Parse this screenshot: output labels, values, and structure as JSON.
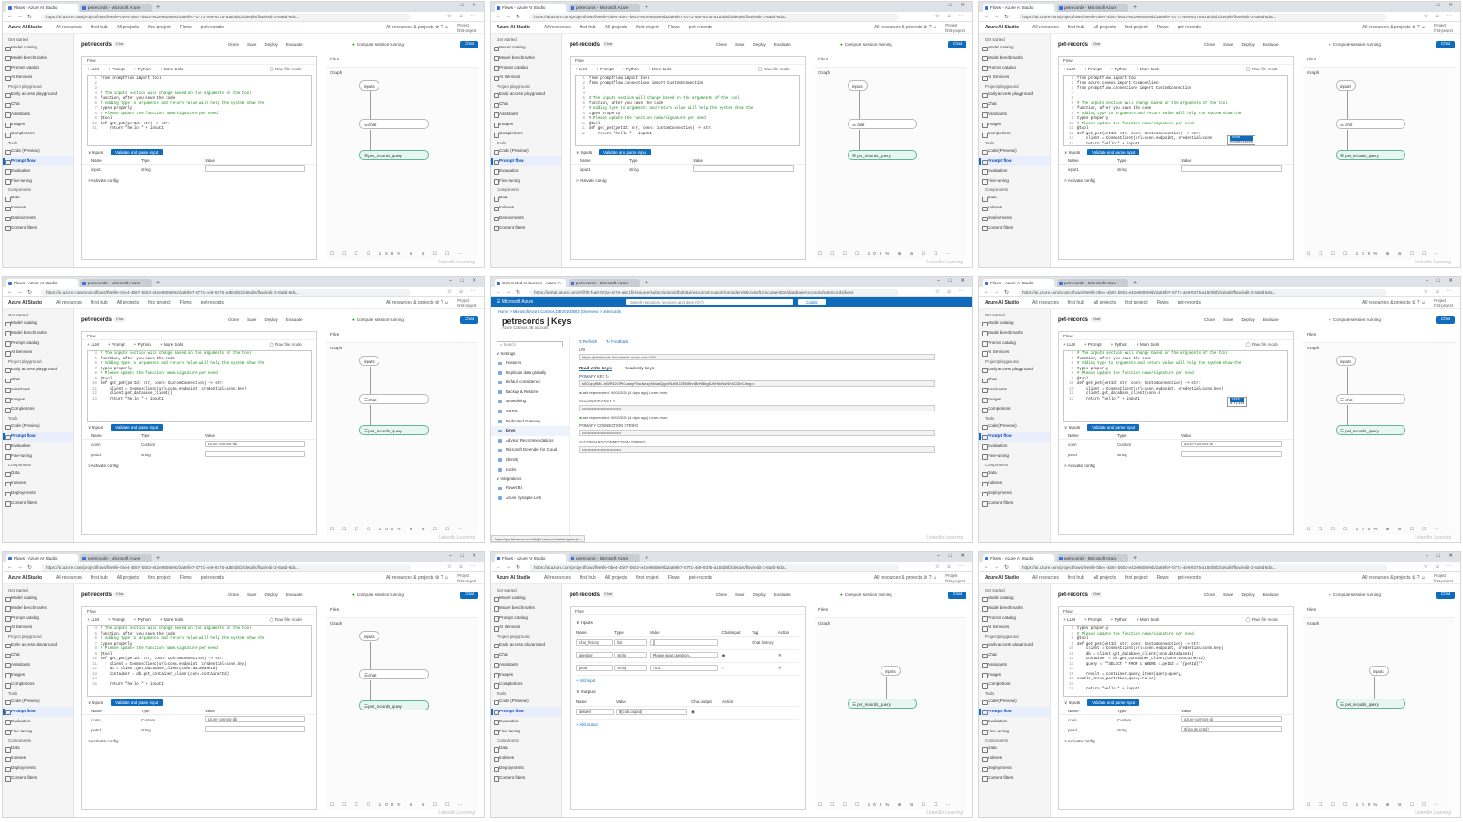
{
  "browser": {
    "tabs": [
      "Flows - Azure AI Studio",
      "petrecords - Microsoft Azure"
    ],
    "url": "https://ai.azure.com/projectflows/f9e9fe-0be4-4b97-b602-e42e9808e9b/2a69fe7-0771-4e9-9375-a150d8f2/details/flow/edit-3-8a8d-8da...",
    "azure_tabs": [
      "Connected resources - Azure AI",
      "petrecords - Microsoft Azure"
    ],
    "azure_url": "https://portal.azure.com/#@f0-f4a0-b72a-4b7e-a0c1f/resource/subscriptions/bb2b5a/resourceGroups/r/providers/Microsoft.DocumentDB/databaseAccounts/petrecords/keys"
  },
  "app": {
    "brand": "Azure AI Studio",
    "breadcrumbs": [
      "All resources",
      "first hub",
      "All projects",
      "first project",
      "Flows",
      "pet-records"
    ],
    "resources_label": "All resources & projects",
    "project_label": "Project",
    "project_name": "first-project"
  },
  "sidebar": [
    {
      "group": "Get started",
      "items": [
        "Model catalog",
        "Model benchmarks",
        "Prompt catalog",
        "AI Services"
      ]
    },
    {
      "group": "Project playground",
      "items": [
        "Early access playground",
        "Chat",
        "Assistants",
        "Images",
        "Completions"
      ]
    },
    {
      "group": "Tools",
      "items": [
        "Code (Preview)",
        "Prompt flow",
        "Evaluation",
        "Fine-tuning"
      ]
    },
    {
      "group": "Components",
      "items": [
        "Data",
        "Indexes",
        "Deployments",
        "Content filters"
      ]
    }
  ],
  "flow": {
    "title": "pet-records",
    "badge": "Chat",
    "actions": [
      "Clone",
      "Save",
      "Deploy",
      "Evaluate"
    ],
    "compute": "Compute session running",
    "chat_button": "Chat",
    "panel_label": "Flow",
    "tools": [
      "+ LLM",
      "+ Prompt",
      "+ Python",
      "+ More tools"
    ],
    "raw_file_mode": "Raw file mode",
    "files_label": "Files",
    "graph_label": "Graph",
    "inputs_label": "Inputs",
    "validate_button": "Validate and parse input",
    "table_headers": [
      "Name",
      "Type",
      "Value"
    ],
    "activate_config": "Activate config",
    "nodes": {
      "inputs": "inputs",
      "chat": "chat",
      "query": "pet_records_query"
    },
    "graph_tools": "☐ ☐ ☐ ☐ 100% ⊕ ⊖ ☐ ☐ ⋯"
  },
  "code_snippets": {
    "t1": [
      "from promptflow import tool",
      "",
      "",
      "# The inputs section will change based on the arguments of the tool",
      "function, after you save the code",
      "# Adding type to arguments and return value will help the system show the",
      "types properly",
      "# Please update the function name/signature per need",
      "@tool",
      "def get_pet(petId: str) -> str:",
      "    return \"hello \" + input1"
    ],
    "t2": [
      "from promptflow import tool",
      "from promptflow.connections import CustomConnection",
      "",
      "",
      "# The inputs section will change based on the arguments of the tool",
      "function, after you save the code",
      "# Adding type to arguments and return value will help the system show the",
      "types property",
      "# Please update the function name/signature per need",
      "@tool",
      "def get_pet(petId: str, conn: CustomConnection) -> str:",
      "    return \"hello \" + input1"
    ],
    "t3": [
      "from promptflow import tool",
      "from azure.cosmos import CosmosClient",
      "from promptflow.connections import CustomConnection",
      "",
      "",
      "# The inputs section will change based on the arguments of the tool",
      "function, after you save the code",
      "# Adding type to arguments and return value will help the system show the",
      "types property",
      "# Please update the function name/signature per need",
      "@tool",
      "def get_pet(petId: str, conn: CustomConnection) -> str:",
      "    client = CosmosClient(url=conn.endpoint, credential=conn",
      "    return \"hello \" + input1"
    ],
    "t4": [
      "# The inputs section will change based on the arguments of the tool",
      "function, after you save the code",
      "# Adding type to arguments and return value will help the system show the",
      "types properly",
      "# Please update the function name/signature per need",
      "@tool",
      "def get_pet(petId: str, conn: CustomConnection) -> str:",
      "    client = CosmosClient(url=conn.endpoint, credential=conn.key)",
      "    client.get_database_client()",
      "    return \"hello \" + input1"
    ],
    "t6": [
      "# The inputs section will change based on the arguments of the tool",
      "function, after you save the code",
      "# Adding type to arguments and return value will help the system show the",
      "types properly",
      "# Please update the function name/signature per need",
      "@tool",
      "def get_pet(petId: str, conn: CustomConnection) -> str:",
      "    client = CosmosClient(url=conn.endpoint, credential=conn.key)",
      "    client.get_database_client(conn.d",
      "    return \"hello \" + input1"
    ],
    "t7": [
      "# The inputs section will change based on the arguments of the tool",
      "function, after you save the code",
      "# Adding type to arguments and return value will help the system show the",
      "types properly",
      "# Please update the function name/signature per need",
      "@tool",
      "def get_pet(petId: str, conn: CustomConnection) -> str:",
      "    client = CosmosClient(url=conn.endpoint, credential=conn.key)",
      "    db = client.get_database_client(conn.databaseId)",
      "    container = db.get_container_client(conn.containerId)",
      "",
      "    return \"hello \" + input1"
    ],
    "t9": [
      "types properly",
      "# Please update the function name/signature per need",
      "@tool",
      "def get_pet(petId: str, conn: CustomConnection) -> str:",
      "    client = CosmosClient(url=conn.endpoint, credential=conn.key)",
      "    db = client.get_database_client(conn.databaseId)",
      "    container = db.get_container_client(conn.containerId)",
      "    query = f\"SELECT * FROM c WHERE c.petId = '{petId}'\"",
      "",
      "    result = container.query_items(query=query,",
      "enable_cross_partition_query=False)",
      "",
      "    return \"hello \" + input1"
    ]
  },
  "code_start": {
    "t1": "1",
    "t2": "1",
    "t3": "1",
    "t4": "4",
    "t6": "4",
    "t7": "4",
    "t9": "6"
  },
  "input_rows": {
    "single": [
      [
        "input1",
        "string",
        ""
      ]
    ],
    "two": [
      [
        "conn",
        "Custom",
        "azure-cosmos-db"
      ],
      [
        "petId",
        "string",
        ""
      ]
    ],
    "two_final": [
      [
        "conn",
        "Custom",
        "azure-cosmos-db"
      ],
      [
        "petId",
        "string",
        "${inputs.petId}"
      ]
    ]
  },
  "suggestions": {
    "t3": [
      "conn",
      "connections"
    ],
    "t6": [
      "dict",
      "dirList"
    ]
  },
  "azure": {
    "topbar": "Microsoft Azure",
    "search_placeholder": "Search resources, services, and docs (G+/)",
    "copilot": "Copilot",
    "breadcrumb": "Home > Microsoft.Azure.Cosmos.DB-20240603 | Overview > petrecords",
    "title": "petrecords | Keys",
    "subtitle": "Azure Cosmos DB account",
    "nav_search": "Search",
    "nav_group1": "Settings",
    "nav_items": [
      "Features",
      "Replicate data globally",
      "Default consistency",
      "Backup & Restore",
      "Networking",
      "CORS",
      "Dedicated Gateway",
      "Keys",
      "Advisor Recommendations",
      "Microsoft Defender for Cloud",
      "Identity",
      "Locks"
    ],
    "nav_group2": "Integrations",
    "nav_items2": [
      "Power BI",
      "Azure Synapse Link"
    ],
    "actions": [
      "Refresh",
      "Feedback"
    ],
    "uri_label": "URI",
    "uri": "https://petrecords.documents.azure.com:443/",
    "tabs": [
      "Read-write Keys",
      "Read-only Keys"
    ],
    "primary_key_label": "PRIMARY KEY",
    "primary_key": "k5Gzpq9MLLhWRB2OPlGuanyVXsdwszpNhuaiQgqVNzBFJ2EBFlhnBhHBbg6UhHbuNsNHACDbGJmg==",
    "regen1": "Last regenerated: 9/20/2024 (4 days ago)",
    "learn_more": "Learn more",
    "secondary_key_label": "SECONDARY KEY",
    "regen2": "Last regenerated: 9/20/2024 (4 days ago)",
    "primary_conn_label": "PRIMARY CONNECTION STRING",
    "secondary_conn_label": "SECONDARY CONNECTION STRING",
    "status_url": "https://portal.azure.com/#@/resource/subscriptions/..."
  },
  "io_editor": {
    "inputs_label": "Inputs",
    "show_description": "Show description",
    "headers": [
      "Name",
      "Type",
      "Value",
      "Chat input",
      "Tag",
      "Action"
    ],
    "rows": [
      [
        "chat_history",
        "list",
        "[]",
        "",
        "Chat history",
        ""
      ],
      [
        "question",
        "string",
        "Please input question...",
        "◉",
        "",
        "✕"
      ],
      [
        "petId",
        "string",
        "7001",
        "○",
        "",
        "✕"
      ]
    ],
    "add_input": "+ Add input",
    "outputs_label": "Outputs",
    "out_headers": [
      "Name",
      "Value",
      "Chat output",
      "Action"
    ],
    "out_rows": [
      [
        "answer",
        "${chat.output}",
        "◉",
        ""
      ]
    ],
    "add_output": "+ Add output"
  },
  "watermark": "LinkedIn Learning"
}
